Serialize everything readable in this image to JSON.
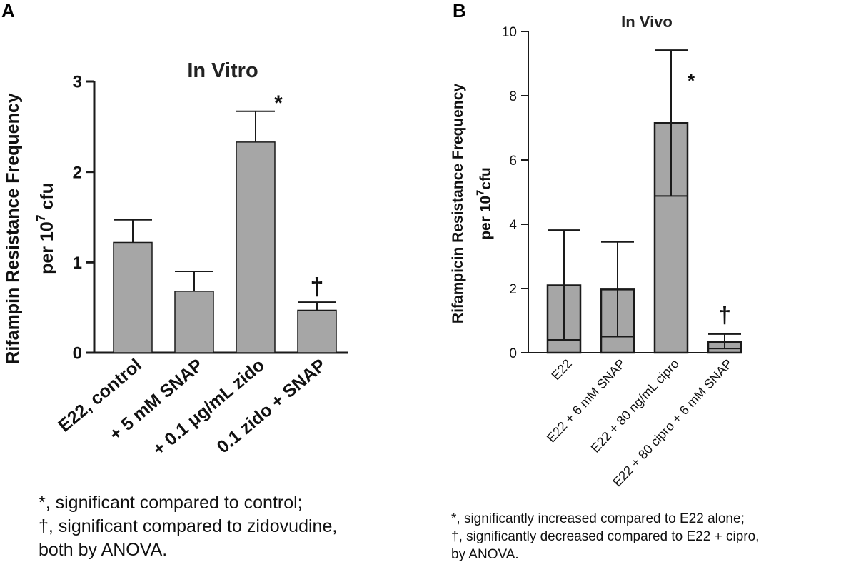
{
  "chart_data": [
    {
      "panel_label": "A",
      "type": "bar",
      "title": "In Vitro",
      "ylabel_line1": "Rifampin Resistance Frequency",
      "ylabel_line2_prefix": "per 10",
      "ylabel_superscript": "7",
      "ylabel_line2_suffix": " cfu",
      "xlabel": "",
      "ylim": [
        0,
        3
      ],
      "y_ticks": [
        0,
        1,
        2,
        3
      ],
      "categories": [
        "E22, control",
        "+ 5 mM SNAP",
        "+ 0.1 μg/mL zido",
        "0.1 zido + SNAP"
      ],
      "values": [
        1.22,
        0.68,
        2.33,
        0.47
      ],
      "error_upper": [
        0.25,
        0.22,
        0.34,
        0.09
      ],
      "annotations": [
        "",
        "",
        "*",
        "†"
      ],
      "footnotes": [
        "*, significant compared to control;",
        "†, significant compared to zidovudine,",
        "both by ANOVA."
      ]
    },
    {
      "panel_label": "B",
      "type": "bar",
      "title": "In Vivo",
      "ylabel_line1": "Rifampicin Resistance Frequency",
      "ylabel_line2_prefix": "per 10",
      "ylabel_superscript": "7",
      "ylabel_line2_suffix": "cfu",
      "xlabel": "",
      "ylim": [
        0,
        10
      ],
      "y_ticks": [
        0,
        2,
        4,
        6,
        8,
        10
      ],
      "categories": [
        "E22",
        "E22 + 6 mM SNAP",
        "E22 + 80 ng/mL cipro",
        "E22 + 80 cipro + 6 mM SNAP"
      ],
      "values": [
        2.1,
        1.97,
        7.15,
        0.33
      ],
      "error_upper": [
        1.72,
        1.48,
        2.27,
        0.25
      ],
      "error_lower": [
        1.7,
        1.47,
        2.27,
        0.2
      ],
      "annotations": [
        "",
        "",
        "*",
        "†"
      ],
      "footnotes": [
        "*, significantly increased compared to E22 alone;",
        "†, significantly decreased compared to E22 + cipro,",
        "by ANOVA."
      ]
    }
  ],
  "colors": {
    "bar_fill": "#a6a6a6",
    "axis": "#1a1a1a"
  }
}
